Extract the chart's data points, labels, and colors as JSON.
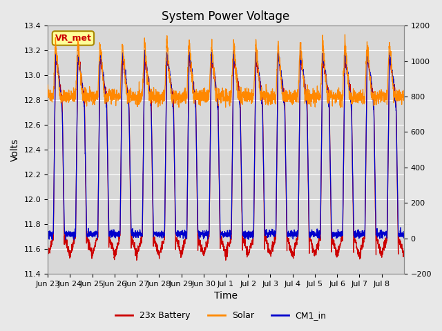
{
  "title": "System Power Voltage",
  "xlabel": "Time",
  "ylabel": "Volts",
  "ylim_left": [
    11.4,
    13.4
  ],
  "ylim_right": [
    -200,
    1200
  ],
  "yticks_left": [
    11.4,
    11.6,
    11.8,
    12.0,
    12.2,
    12.4,
    12.6,
    12.8,
    13.0,
    13.2,
    13.4
  ],
  "yticks_right": [
    -200,
    0,
    200,
    400,
    600,
    800,
    1000,
    1200
  ],
  "x_tick_labels": [
    "Jun 23",
    "Jun 24",
    "Jun 25",
    "Jun 26",
    "Jun 27",
    "Jun 28",
    "Jun 29",
    "Jun 30",
    "Jul 1",
    "Jul 2",
    "Jul 3",
    "Jul 4",
    "Jul 5",
    "Jul 6",
    "Jul 7",
    "Jul 8"
  ],
  "bg_color": "#e8e8e8",
  "plot_bg_color": "#d8d8d8",
  "grid_color": "#ffffff",
  "battery_color": "#cc0000",
  "solar_color": "#ff8800",
  "cm1_color": "#0000cc",
  "legend_labels": [
    "23x Battery",
    "Solar",
    "CM1_in"
  ],
  "annotation_text": "VR_met",
  "annotation_color": "#cc0000",
  "annotation_bg": "#ffff99",
  "annotation_border": "#aa8800",
  "num_days": 16,
  "pts_per_day": 144
}
